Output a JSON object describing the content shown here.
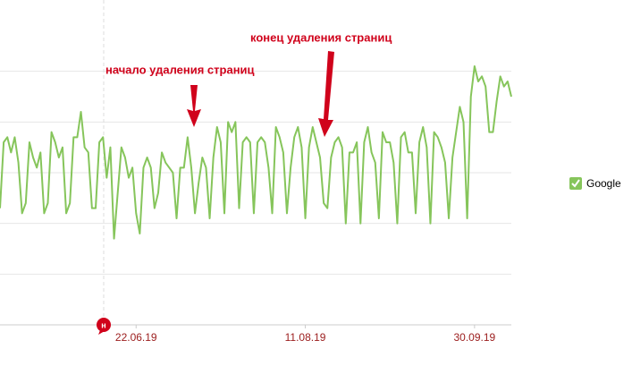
{
  "chart_data": {
    "type": "line",
    "x": [
      0,
      1,
      2,
      3,
      4,
      5,
      6,
      7,
      8,
      9,
      10,
      11,
      12,
      13,
      14,
      15,
      16,
      17,
      18,
      19,
      20,
      21,
      22,
      23,
      24,
      25,
      26,
      27,
      28,
      29,
      30,
      31,
      32,
      33,
      34,
      35,
      36,
      37,
      38,
      39,
      40,
      41,
      42,
      43,
      44,
      45,
      46,
      47,
      48,
      49,
      50,
      51,
      52,
      53,
      54,
      55,
      56,
      57,
      58,
      59,
      60,
      61,
      62,
      63,
      64,
      65,
      66,
      67,
      68,
      69,
      70,
      71,
      72,
      73,
      74,
      75,
      76,
      77,
      78,
      79,
      80,
      81,
      82,
      83,
      84,
      85,
      86,
      87,
      88,
      89,
      90,
      91,
      92,
      93,
      94,
      95,
      96,
      97,
      98,
      99,
      100,
      101,
      102,
      103,
      104,
      105,
      106,
      107,
      108,
      109,
      110,
      111,
      112,
      113,
      114,
      115,
      116,
      117,
      118,
      119,
      120,
      121,
      122,
      123,
      124,
      125,
      126,
      127,
      128,
      129,
      130,
      131,
      132,
      133,
      134,
      135,
      136,
      137,
      138,
      139
    ],
    "series": [
      {
        "name": "Google",
        "color": "#86c55b",
        "values": [
          2.3,
          3.6,
          3.7,
          3.4,
          3.7,
          3.2,
          2.2,
          2.4,
          3.6,
          3.3,
          3.1,
          3.4,
          2.2,
          2.4,
          3.8,
          3.6,
          3.3,
          3.5,
          2.2,
          2.4,
          3.7,
          3.7,
          4.2,
          3.5,
          3.4,
          2.3,
          2.3,
          3.6,
          3.7,
          2.9,
          3.5,
          1.7,
          2.6,
          3.5,
          3.3,
          2.9,
          3.1,
          2.2,
          1.8,
          3.1,
          3.3,
          3.1,
          2.3,
          2.6,
          3.4,
          3.2,
          3.1,
          3.0,
          2.1,
          3.1,
          3.1,
          3.7,
          3.1,
          2.2,
          2.8,
          3.3,
          3.1,
          2.1,
          3.3,
          3.9,
          3.6,
          2.2,
          4.0,
          3.8,
          4.0,
          2.3,
          3.6,
          3.7,
          3.6,
          2.2,
          3.6,
          3.7,
          3.6,
          3.1,
          2.2,
          3.9,
          3.7,
          3.4,
          2.2,
          3.1,
          3.7,
          3.9,
          3.5,
          2.1,
          3.5,
          3.9,
          3.6,
          3.3,
          2.4,
          2.3,
          3.3,
          3.6,
          3.7,
          3.5,
          2.0,
          3.4,
          3.4,
          3.6,
          2.0,
          3.6,
          3.9,
          3.4,
          3.2,
          2.1,
          3.8,
          3.6,
          3.6,
          3.2,
          2.0,
          3.7,
          3.8,
          3.4,
          3.4,
          2.2,
          3.6,
          3.9,
          3.5,
          2.0,
          3.8,
          3.7,
          3.5,
          3.2,
          2.1,
          3.3,
          3.8,
          4.3,
          4.0,
          2.1,
          4.5,
          5.1,
          4.8,
          4.9,
          4.7,
          3.8,
          3.8,
          4.4,
          4.9,
          4.7,
          4.8,
          4.5
        ]
      }
    ],
    "xlim": [
      0,
      139
    ],
    "xticks": [
      {
        "value": 37,
        "label": "22.06.19"
      },
      {
        "value": 83,
        "label": "11.08.19"
      },
      {
        "value": 129,
        "label": "30.09.19"
      }
    ],
    "ylim": [
      0,
      6
    ],
    "yticks": [
      0,
      1,
      2,
      3,
      4,
      5
    ],
    "grid": true,
    "holiday_marker": "н",
    "annotations": [
      "начало удаления страниц",
      "конец удаления страниц"
    ]
  }
}
